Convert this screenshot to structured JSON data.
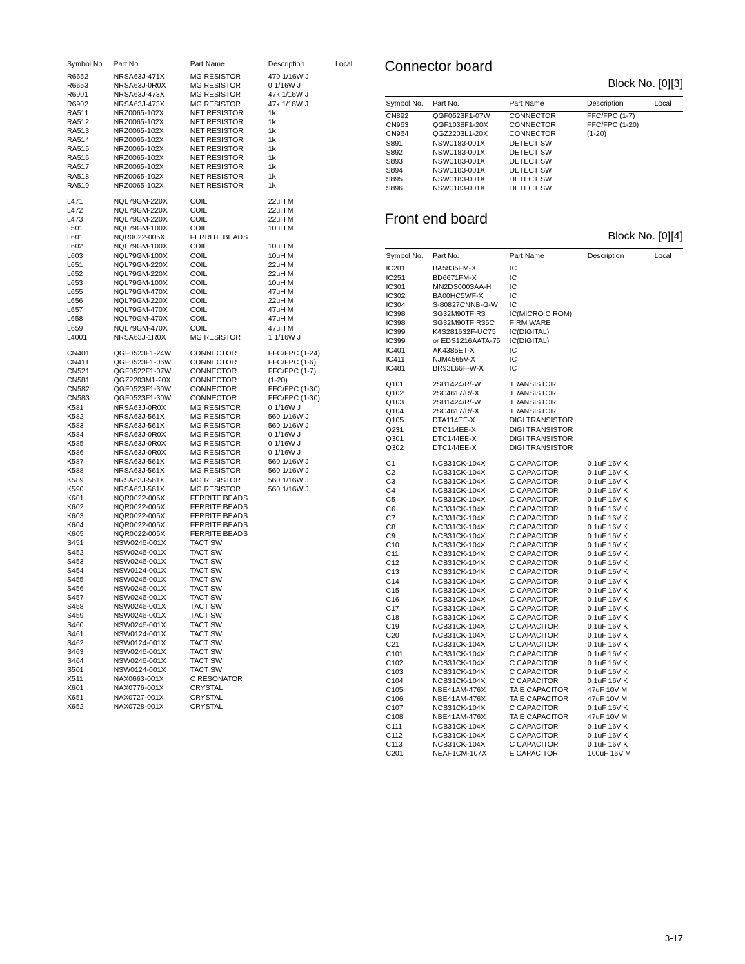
{
  "page_number": "3-17",
  "left": {
    "headers": [
      "Symbol No.",
      "Part No.",
      "Part Name",
      "Description",
      "Local"
    ],
    "groups": [
      [
        [
          "R6652",
          "NRSA63J-471X",
          "MG RESISTOR",
          "470   1/16W J",
          ""
        ],
        [
          "R6653",
          "NRSA63J-0R0X",
          "MG RESISTOR",
          "0   1/16W J",
          ""
        ],
        [
          "R6901",
          "NRSA63J-473X",
          "MG RESISTOR",
          "47k   1/16W J",
          ""
        ],
        [
          "R6902",
          "NRSA63J-473X",
          "MG RESISTOR",
          "47k   1/16W J",
          ""
        ],
        [
          "RA511",
          "NRZ0065-102X",
          "NET RESISTOR",
          "1k",
          ""
        ],
        [
          "RA512",
          "NRZ0065-102X",
          "NET RESISTOR",
          "1k",
          ""
        ],
        [
          "RA513",
          "NRZ0065-102X",
          "NET RESISTOR",
          "1k",
          ""
        ],
        [
          "RA514",
          "NRZ0065-102X",
          "NET RESISTOR",
          "1k",
          ""
        ],
        [
          "RA515",
          "NRZ0065-102X",
          "NET RESISTOR",
          "1k",
          ""
        ],
        [
          "RA516",
          "NRZ0065-102X",
          "NET RESISTOR",
          "1k",
          ""
        ],
        [
          "RA517",
          "NRZ0065-102X",
          "NET RESISTOR",
          "1k",
          ""
        ],
        [
          "RA518",
          "NRZ0065-102X",
          "NET RESISTOR",
          "1k",
          ""
        ],
        [
          "RA519",
          "NRZ0065-102X",
          "NET RESISTOR",
          "1k",
          ""
        ]
      ],
      [
        [
          "L471",
          "NQL79GM-220X",
          "COIL",
          "22uH M",
          ""
        ],
        [
          "L472",
          "NQL79GM-220X",
          "COIL",
          "22uH M",
          ""
        ],
        [
          "L473",
          "NQL79GM-220X",
          "COIL",
          "22uH M",
          ""
        ],
        [
          "L501",
          "NQL79GM-100X",
          "COIL",
          "10uH M",
          ""
        ],
        [
          "L601",
          "NQR0022-005X",
          "FERRITE BEADS",
          "",
          ""
        ],
        [
          "L602",
          "NQL79GM-100X",
          "COIL",
          "10uH M",
          ""
        ],
        [
          "L603",
          "NQL79GM-100X",
          "COIL",
          "10uH M",
          ""
        ],
        [
          "L651",
          "NQL79GM-220X",
          "COIL",
          "22uH M",
          ""
        ],
        [
          "L652",
          "NQL79GM-220X",
          "COIL",
          "22uH M",
          ""
        ],
        [
          "L653",
          "NQL79GM-100X",
          "COIL",
          "10uH M",
          ""
        ],
        [
          "L655",
          "NQL79GM-470X",
          "COIL",
          "47uH M",
          ""
        ],
        [
          "L656",
          "NQL79GM-220X",
          "COIL",
          "22uH M",
          ""
        ],
        [
          "L657",
          "NQL79GM-470X",
          "COIL",
          "47uH M",
          ""
        ],
        [
          "L658",
          "NQL79GM-470X",
          "COIL",
          "47uH M",
          ""
        ],
        [
          "L659",
          "NQL79GM-470X",
          "COIL",
          "47uH M",
          ""
        ],
        [
          "L4001",
          "NRSA63J-1R0X",
          "MG RESISTOR",
          "1   1/16W J",
          ""
        ]
      ],
      [
        [
          "CN401",
          "QGF0523F1-24W",
          "CONNECTOR",
          "FFC/FPC (1-24)",
          ""
        ],
        [
          "CN411",
          "QGF0523F1-06W",
          "CONNECTOR",
          "FFC/FPC (1-6)",
          ""
        ],
        [
          "CN521",
          "QGF0522F1-07W",
          "CONNECTOR",
          "FFC/FPC (1-7)",
          ""
        ],
        [
          "CN581",
          "QGZ2203M1-20X",
          "CONNECTOR",
          "  (1-20)",
          ""
        ],
        [
          "CN582",
          "QGF0523F1-30W",
          "CONNECTOR",
          "FFC/FPC (1-30)",
          ""
        ],
        [
          "CN583",
          "QGF0523F1-30W",
          "CONNECTOR",
          "FFC/FPC (1-30)",
          ""
        ],
        [
          "K581",
          "NRSA63J-0R0X",
          "MG RESISTOR",
          "0   1/16W J",
          ""
        ],
        [
          "K582",
          "NRSA63J-561X",
          "MG RESISTOR",
          "560   1/16W J",
          ""
        ],
        [
          "K583",
          "NRSA63J-561X",
          "MG RESISTOR",
          "560   1/16W J",
          ""
        ],
        [
          "K584",
          "NRSA63J-0R0X",
          "MG RESISTOR",
          "0   1/16W J",
          ""
        ],
        [
          "K585",
          "NRSA63J-0R0X",
          "MG RESISTOR",
          "0   1/16W J",
          ""
        ],
        [
          "K586",
          "NRSA63J-0R0X",
          "MG RESISTOR",
          "0   1/16W J",
          ""
        ],
        [
          "K587",
          "NRSA63J-561X",
          "MG RESISTOR",
          "560   1/16W J",
          ""
        ],
        [
          "K588",
          "NRSA63J-561X",
          "MG RESISTOR",
          "560   1/16W J",
          ""
        ],
        [
          "K589",
          "NRSA63J-561X",
          "MG RESISTOR",
          "560   1/16W J",
          ""
        ],
        [
          "K590",
          "NRSA63J-561X",
          "MG RESISTOR",
          "560   1/16W J",
          ""
        ],
        [
          "K601",
          "NQR0022-005X",
          "FERRITE BEADS",
          "",
          ""
        ],
        [
          "K602",
          "NQR0022-005X",
          "FERRITE BEADS",
          "",
          ""
        ],
        [
          "K603",
          "NQR0022-005X",
          "FERRITE BEADS",
          "",
          ""
        ],
        [
          "K604",
          "NQR0022-005X",
          "FERRITE BEADS",
          "",
          ""
        ],
        [
          "K605",
          "NQR0022-005X",
          "FERRITE BEADS",
          "",
          ""
        ],
        [
          "S451",
          "NSW0246-001X",
          "TACT SW",
          "",
          ""
        ],
        [
          "S452",
          "NSW0246-001X",
          "TACT SW",
          "",
          ""
        ],
        [
          "S453",
          "NSW0246-001X",
          "TACT SW",
          "",
          ""
        ],
        [
          "S454",
          "NSW0124-001X",
          "TACT SW",
          "",
          ""
        ],
        [
          "S455",
          "NSW0246-001X",
          "TACT SW",
          "",
          ""
        ],
        [
          "S456",
          "NSW0246-001X",
          "TACT SW",
          "",
          ""
        ],
        [
          "S457",
          "NSW0246-001X",
          "TACT SW",
          "",
          ""
        ],
        [
          "S458",
          "NSW0246-001X",
          "TACT SW",
          "",
          ""
        ],
        [
          "S459",
          "NSW0246-001X",
          "TACT SW",
          "",
          ""
        ],
        [
          "S460",
          "NSW0246-001X",
          "TACT SW",
          "",
          ""
        ],
        [
          "S461",
          "NSW0124-001X",
          "TACT SW",
          "",
          ""
        ],
        [
          "S462",
          "NSW0124-001X",
          "TACT SW",
          "",
          ""
        ],
        [
          "S463",
          "NSW0246-001X",
          "TACT SW",
          "",
          ""
        ],
        [
          "S464",
          "NSW0246-001X",
          "TACT SW",
          "",
          ""
        ],
        [
          "S501",
          "NSW0124-001X",
          "TACT SW",
          "",
          ""
        ],
        [
          "X511",
          "NAX0663-001X",
          "C RESONATOR",
          "",
          ""
        ],
        [
          "X601",
          "NAX0776-001X",
          "CRYSTAL",
          "",
          ""
        ],
        [
          "X651",
          "NAX0727-001X",
          "CRYSTAL",
          "",
          ""
        ],
        [
          "X652",
          "NAX0728-001X",
          "CRYSTAL",
          "",
          ""
        ]
      ]
    ]
  },
  "right": {
    "sections": [
      {
        "title": "Connector board",
        "block": "Block No. [0][3]",
        "headers": [
          "Symbol No.",
          "Part No.",
          "Part Name",
          "Description",
          "Local"
        ],
        "groups": [
          [
            [
              "CN892",
              "QGF0523F1-07W",
              "CONNECTOR",
              "FFC/FPC (1-7)",
              ""
            ],
            [
              "CN963",
              "QGF1038F1-20X",
              "CONNECTOR",
              "FFC/FPC (1-20)",
              ""
            ],
            [
              "CN964",
              "QGZ2203L1-20X",
              "CONNECTOR",
              "  (1-20)",
              ""
            ],
            [
              "S891",
              "NSW0183-001X",
              "DETECT SW",
              "",
              ""
            ],
            [
              "S892",
              "NSW0183-001X",
              "DETECT SW",
              "",
              ""
            ],
            [
              "S893",
              "NSW0183-001X",
              "DETECT SW",
              "",
              ""
            ],
            [
              "S894",
              "NSW0183-001X",
              "DETECT SW",
              "",
              ""
            ],
            [
              "S895",
              "NSW0183-001X",
              "DETECT SW",
              "",
              ""
            ],
            [
              "S896",
              "NSW0183-001X",
              "DETECT SW",
              "",
              ""
            ]
          ]
        ]
      },
      {
        "title": "Front end board",
        "block": "Block No. [0][4]",
        "headers": [
          "Symbol No.",
          "Part No.",
          "Part Name",
          "Description",
          "Local"
        ],
        "groups": [
          [
            [
              "IC201",
              "BA5835FM-X",
              "IC",
              "",
              ""
            ],
            [
              "IC251",
              "BD6671FM-X",
              "IC",
              "",
              ""
            ],
            [
              "IC301",
              "MN2DS0003AA-H",
              "IC",
              "",
              ""
            ],
            [
              "IC302",
              "BA00HC5WF-X",
              "IC",
              "",
              ""
            ],
            [
              "IC304",
              "S-80827CNNB-G-W",
              "IC",
              "",
              ""
            ],
            [
              "IC398",
              "SG32M90TFIR3",
              "IC(MICRO C ROM)",
              "",
              ""
            ],
            [
              "IC398",
              "SG32M90TFIR35C",
              "FIRM WARE",
              "",
              ""
            ],
            [
              "IC399",
              "K4S281632F-UC75",
              "IC(DIGITAL)",
              "",
              ""
            ],
            [
              "IC399",
              "or EDS1216AATA-75",
              "IC(DIGITAL)",
              "",
              ""
            ],
            [
              "IC401",
              "AK4385ET-X",
              "IC",
              "",
              ""
            ],
            [
              "IC411",
              "NJM4565V-X",
              "IC",
              "",
              ""
            ],
            [
              "IC481",
              "BR93L66F-W-X",
              "IC",
              "",
              ""
            ]
          ],
          [
            [
              "Q101",
              "2SB1424/R/-W",
              "TRANSISTOR",
              "",
              ""
            ],
            [
              "Q102",
              "2SC4617/R/-X",
              "TRANSISTOR",
              "",
              ""
            ],
            [
              "Q103",
              "2SB1424/R/-W",
              "TRANSISTOR",
              "",
              ""
            ],
            [
              "Q104",
              "2SC4617/R/-X",
              "TRANSISTOR",
              "",
              ""
            ],
            [
              "Q105",
              "DTA114EE-X",
              "DIGI TRANSISTOR",
              "",
              ""
            ],
            [
              "Q231",
              "DTC114EE-X",
              "DIGI TRANSISTOR",
              "",
              ""
            ],
            [
              "Q301",
              "DTC144EE-X",
              "DIGI TRANSISTOR",
              "",
              ""
            ],
            [
              "Q302",
              "DTC144EE-X",
              "DIGI TRANSISTOR",
              "",
              ""
            ]
          ],
          [
            [
              "C1",
              "NCB31CK-104X",
              "C CAPACITOR",
              "0.1uF 16V K",
              ""
            ],
            [
              "C2",
              "NCB31CK-104X",
              "C CAPACITOR",
              "0.1uF 16V K",
              ""
            ],
            [
              "C3",
              "NCB31CK-104X",
              "C CAPACITOR",
              "0.1uF 16V K",
              ""
            ],
            [
              "C4",
              "NCB31CK-104X",
              "C CAPACITOR",
              "0.1uF 16V K",
              ""
            ],
            [
              "C5",
              "NCB31CK-104X",
              "C CAPACITOR",
              "0.1uF 16V K",
              ""
            ],
            [
              "C6",
              "NCB31CK-104X",
              "C CAPACITOR",
              "0.1uF 16V K",
              ""
            ],
            [
              "C7",
              "NCB31CK-104X",
              "C CAPACITOR",
              "0.1uF 16V K",
              ""
            ],
            [
              "C8",
              "NCB31CK-104X",
              "C CAPACITOR",
              "0.1uF 16V K",
              ""
            ],
            [
              "C9",
              "NCB31CK-104X",
              "C CAPACITOR",
              "0.1uF 16V K",
              ""
            ],
            [
              "C10",
              "NCB31CK-104X",
              "C CAPACITOR",
              "0.1uF 16V K",
              ""
            ],
            [
              "C11",
              "NCB31CK-104X",
              "C CAPACITOR",
              "0.1uF 16V K",
              ""
            ],
            [
              "C12",
              "NCB31CK-104X",
              "C CAPACITOR",
              "0.1uF 16V K",
              ""
            ],
            [
              "C13",
              "NCB31CK-104X",
              "C CAPACITOR",
              "0.1uF 16V K",
              ""
            ],
            [
              "C14",
              "NCB31CK-104X",
              "C CAPACITOR",
              "0.1uF 16V K",
              ""
            ],
            [
              "C15",
              "NCB31CK-104X",
              "C CAPACITOR",
              "0.1uF 16V K",
              ""
            ],
            [
              "C16",
              "NCB31CK-104X",
              "C CAPACITOR",
              "0.1uF 16V K",
              ""
            ],
            [
              "C17",
              "NCB31CK-104X",
              "C CAPACITOR",
              "0.1uF 16V K",
              ""
            ],
            [
              "C18",
              "NCB31CK-104X",
              "C CAPACITOR",
              "0.1uF 16V K",
              ""
            ],
            [
              "C19",
              "NCB31CK-104X",
              "C CAPACITOR",
              "0.1uF 16V K",
              ""
            ],
            [
              "C20",
              "NCB31CK-104X",
              "C CAPACITOR",
              "0.1uF 16V K",
              ""
            ],
            [
              "C21",
              "NCB31CK-104X",
              "C CAPACITOR",
              "0.1uF 16V K",
              ""
            ],
            [
              "C101",
              "NCB31CK-104X",
              "C CAPACITOR",
              "0.1uF 16V K",
              ""
            ],
            [
              "C102",
              "NCB31CK-104X",
              "C CAPACITOR",
              "0.1uF 16V K",
              ""
            ],
            [
              "C103",
              "NCB31CK-104X",
              "C CAPACITOR",
              "0.1uF 16V K",
              ""
            ],
            [
              "C104",
              "NCB31CK-104X",
              "C CAPACITOR",
              "0.1uF 16V K",
              ""
            ],
            [
              "C105",
              "NBE41AM-476X",
              "TA E CAPACITOR",
              "47uF 10V M",
              ""
            ],
            [
              "C106",
              "NBE41AM-476X",
              "TA E CAPACITOR",
              "47uF 10V M",
              ""
            ],
            [
              "C107",
              "NCB31CK-104X",
              "C CAPACITOR",
              "0.1uF 16V K",
              ""
            ],
            [
              "C108",
              "NBE41AM-476X",
              "TA E CAPACITOR",
              "47uF 10V M",
              ""
            ],
            [
              "C111",
              "NCB31CK-104X",
              "C CAPACITOR",
              "0.1uF 16V K",
              ""
            ],
            [
              "C112",
              "NCB31CK-104X",
              "C CAPACITOR",
              "0.1uF 16V K",
              ""
            ],
            [
              "C113",
              "NCB31CK-104X",
              "C CAPACITOR",
              "0.1uF 16V K",
              ""
            ],
            [
              "C201",
              "NEAF1CM-107X",
              "E CAPACITOR",
              "100uF 16V M",
              ""
            ]
          ]
        ]
      }
    ]
  }
}
